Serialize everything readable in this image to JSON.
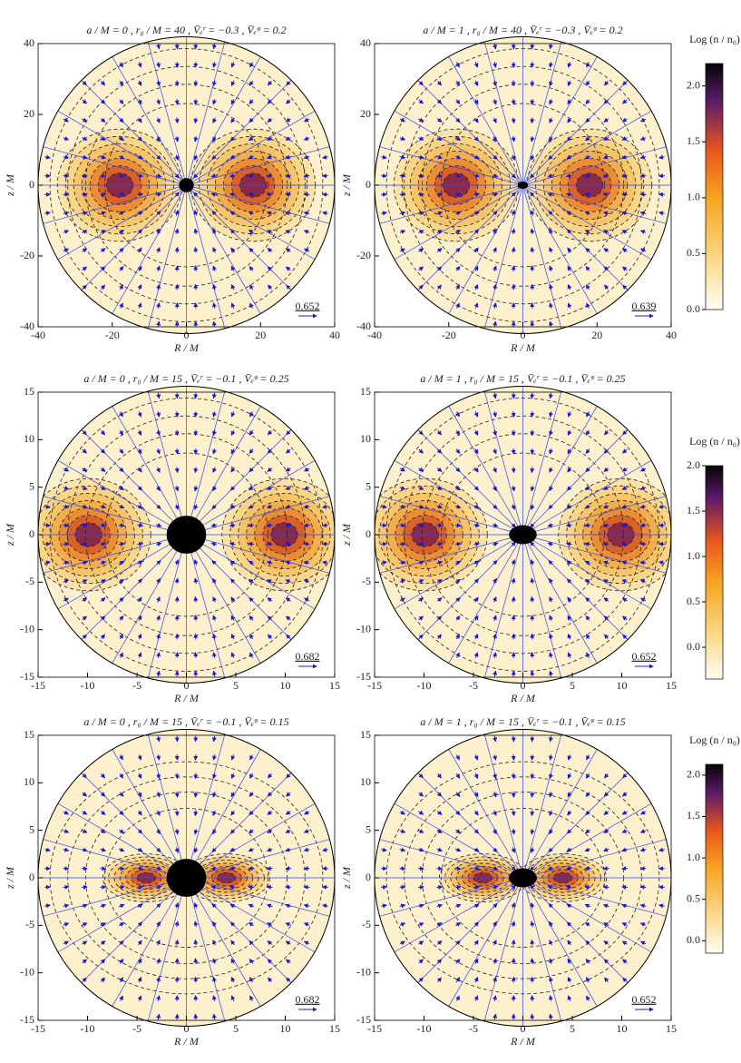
{
  "chart_data": [
    {
      "type": "density",
      "title": "a / M = 0 ,  r₀ / M = 40 ,  V̄ₑʳ = −0.3 ,  V̄ₑᵠ = 0.2",
      "xlabel": "R / M",
      "ylabel": "z / M",
      "xlim": [
        -40,
        40
      ],
      "ylim": [
        -40,
        40
      ],
      "xticks": [
        -40,
        -20,
        0,
        20,
        40
      ],
      "yticks": [
        -40,
        -20,
        0,
        20,
        40
      ],
      "horizon": {
        "rx": 2,
        "rz": 2
      },
      "arrow_scale": "0.652"
    },
    {
      "type": "density",
      "title": "a / M = 1 ,  r₀ / M = 40 ,  V̄ₑʳ = −0.3 ,  V̄ₑᵠ = 0.2",
      "xlabel": "R / M",
      "ylabel": "z / M",
      "xlim": [
        -40,
        40
      ],
      "ylim": [
        -40,
        40
      ],
      "xticks": [
        -40,
        -20,
        0,
        20,
        40
      ],
      "yticks": [
        -40,
        -20,
        0,
        20,
        40
      ],
      "horizon": {
        "rx": 1.4,
        "rz": 1
      },
      "arrow_scale": "0.639",
      "colorbar": {
        "label": "Log (n / n₀)",
        "lim": [
          0,
          2.2
        ],
        "ticks": [
          {
            "value": 0,
            "label": "0.0"
          },
          0.5,
          {
            "value": 1,
            "label": "1.0"
          },
          1.5,
          {
            "value": 2,
            "label": "2.0"
          }
        ]
      }
    },
    {
      "type": "density",
      "title": "a / M = 0 ,  r₀ / M = 15 ,  V̄ₑʳ = −0.1 ,  V̄ₑᵠ = 0.25",
      "xlabel": "R / M",
      "ylabel": "z / M",
      "xlim": [
        -15,
        15
      ],
      "ylim": [
        -15,
        15
      ],
      "xticks": [
        -15,
        -10,
        -5,
        0,
        5,
        10,
        15
      ],
      "yticks": [
        -15,
        -10,
        -5,
        0,
        5,
        10,
        15
      ],
      "horizon": {
        "rx": 2,
        "rz": 2
      },
      "arrow_scale": "0.682"
    },
    {
      "type": "density",
      "title": "a / M = 1 ,  r₀ / M = 15 ,  V̄ₑʳ = −0.1 ,  V̄ₑᵠ = 0.25",
      "xlabel": "R / M",
      "ylabel": "z / M",
      "xlim": [
        -15,
        15
      ],
      "ylim": [
        -15,
        15
      ],
      "xticks": [
        -15,
        -10,
        -5,
        0,
        5,
        10,
        15
      ],
      "yticks": [
        -15,
        -10,
        -5,
        0,
        5,
        10,
        15
      ],
      "horizon": {
        "rx": 1.4,
        "rz": 1
      },
      "arrow_scale": "0.652",
      "colorbar": {
        "label": "Log (n / n₀)",
        "lim": [
          -0.35,
          2.0
        ],
        "ticks": [
          {
            "value": 0,
            "label": "0.0"
          },
          0.5,
          {
            "value": 1,
            "label": "1.0"
          },
          1.5,
          {
            "value": 2,
            "label": "2.0"
          }
        ]
      }
    },
    {
      "type": "density",
      "title": "a / M = 0 ,  r₀ / M = 15 ,  V̄ₑʳ = −0.1 ,  V̄ₑᵠ = 0.15",
      "xlabel": "R / M",
      "ylabel": "z / M",
      "xlim": [
        -15,
        15
      ],
      "ylim": [
        -15,
        15
      ],
      "xticks": [
        -15,
        -10,
        -5,
        0,
        5,
        10,
        15
      ],
      "yticks": [
        -15,
        -10,
        -5,
        0,
        5,
        10,
        15
      ],
      "horizon": {
        "rx": 2,
        "rz": 2
      },
      "arrow_scale": "0.682"
    },
    {
      "type": "density",
      "title": "a / M = 1 ,  r₀ / M = 15 ,  V̄ₑʳ = −0.1 ,  V̄ₑᵠ = 0.15",
      "xlabel": "R / M",
      "ylabel": "z / M",
      "xlim": [
        -15,
        15
      ],
      "ylim": [
        -15,
        15
      ],
      "xticks": [
        -15,
        -10,
        -5,
        0,
        5,
        10,
        15
      ],
      "yticks": [
        -15,
        -10,
        -5,
        0,
        5,
        10,
        15
      ],
      "horizon": {
        "rx": 1.4,
        "rz": 1
      },
      "arrow_scale": "0.652",
      "colorbar": {
        "label": "Log (n / n₀)",
        "lim": [
          -0.15,
          2.13
        ],
        "ticks": [
          {
            "value": 0,
            "label": "0.0"
          },
          0.5,
          {
            "value": 1,
            "label": "1.0"
          },
          1.5,
          {
            "value": 2,
            "label": "2.0"
          }
        ]
      }
    }
  ]
}
